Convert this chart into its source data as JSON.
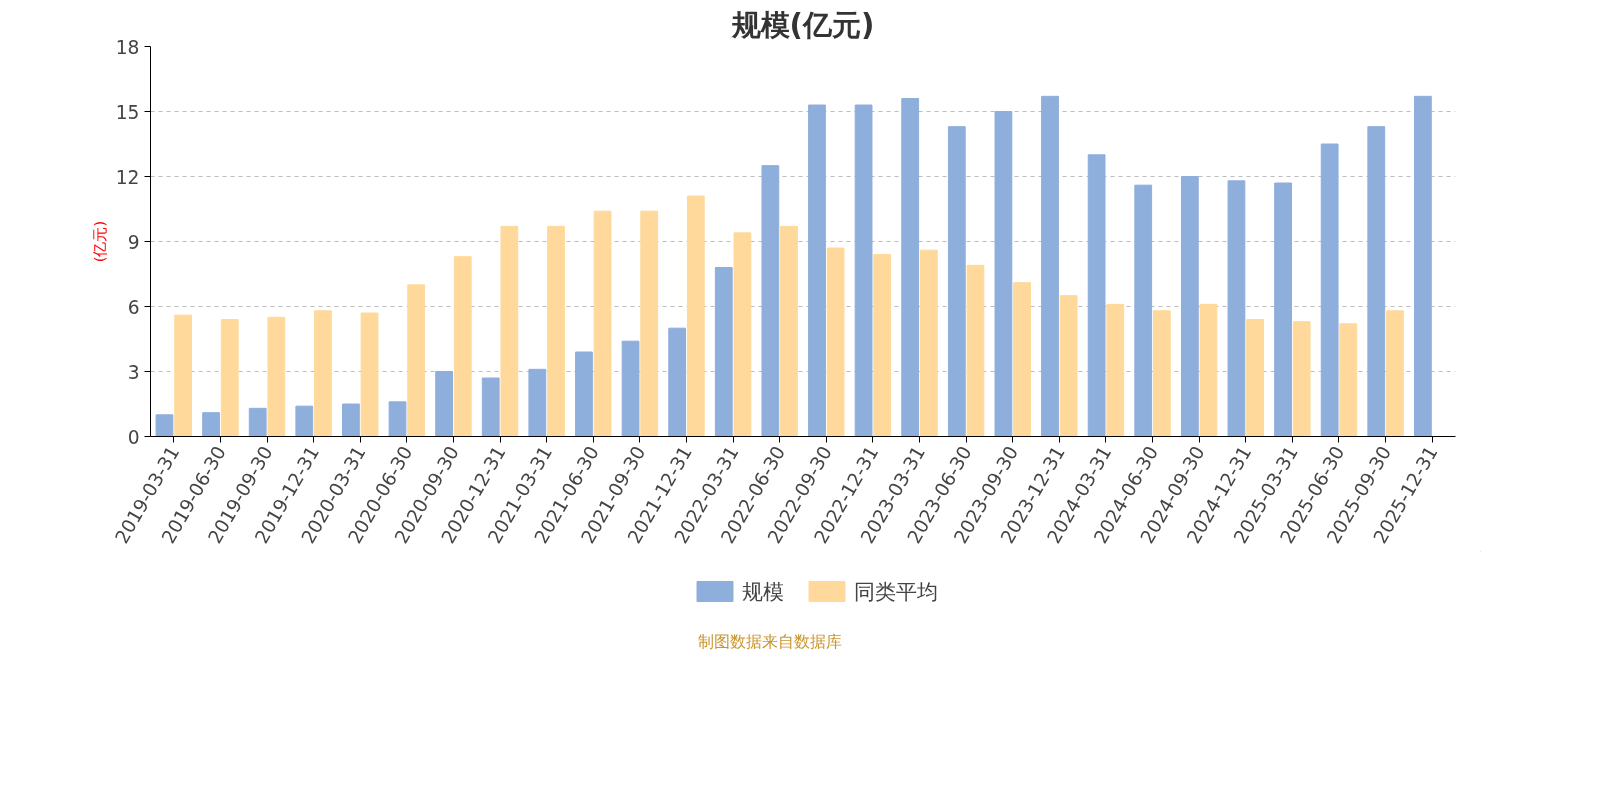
{
  "chart_data": {
    "type": "bar",
    "title": "规模(亿元)",
    "ylabel": "(亿元)",
    "categories": [
      "2019-03-31",
      "2019-06-30",
      "2019-09-30",
      "2019-12-31",
      "2020-03-31",
      "2020-06-30",
      "2020-09-30",
      "2020-12-31",
      "2021-03-31",
      "2021-06-30",
      "2021-09-30",
      "2021-12-31",
      "2022-03-31",
      "2022-06-30",
      "2022-09-30",
      "2022-12-31",
      "2023-03-31",
      "2023-06-30",
      "2023-09-30",
      "2023-12-31",
      "2024-03-31",
      "2024-06-30",
      "2024-09-30",
      "2024-12-31",
      "2025-03-31",
      "2025-06-30",
      "2025-09-30",
      "2025-12-31"
    ],
    "series": [
      {
        "name": "规模",
        "color": "#8eaedb",
        "values": [
          1.0,
          1.1,
          1.3,
          1.4,
          1.5,
          1.6,
          3.0,
          2.7,
          3.1,
          3.9,
          4.4,
          5.0,
          7.8,
          12.5,
          15.3,
          15.3,
          15.6,
          14.3,
          15.0,
          15.7,
          13.0,
          11.6,
          12.0,
          11.8,
          11.7,
          13.5,
          14.3,
          15.7
        ]
      },
      {
        "name": "同类平均",
        "color": "#fed99b",
        "values": [
          5.6,
          5.4,
          5.5,
          5.8,
          5.7,
          7.0,
          8.3,
          9.7,
          9.7,
          10.4,
          10.4,
          11.1,
          9.4,
          9.7,
          8.7,
          8.4,
          8.6,
          7.9,
          7.1,
          6.5,
          6.1,
          5.8,
          6.1,
          5.4,
          5.3,
          5.2,
          5.8,
          null
        ]
      }
    ],
    "ylim": [
      0,
      18
    ],
    "yticks": [
      0,
      3,
      6,
      9,
      12,
      15,
      18
    ],
    "grid": "y",
    "legend": "bottom",
    "annotations": [
      "制图数据来自数据库"
    ]
  }
}
